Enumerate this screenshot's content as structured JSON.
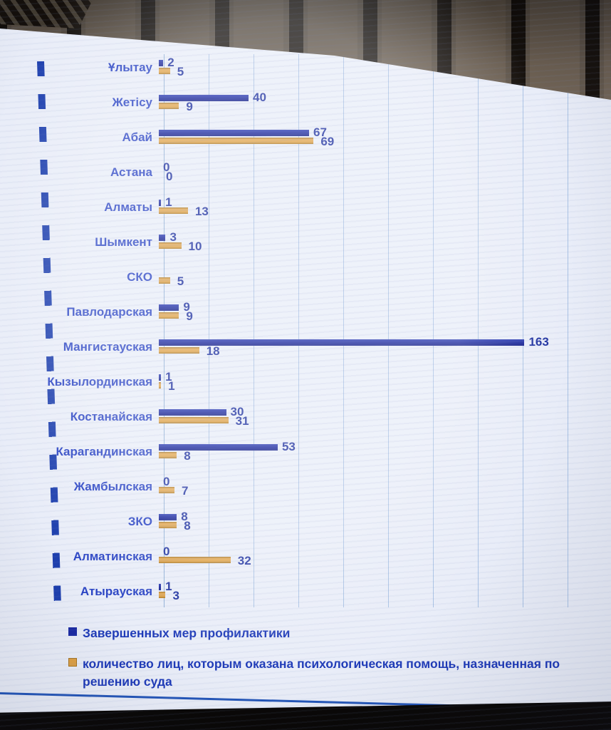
{
  "chart_data": {
    "type": "bar",
    "orientation": "horizontal",
    "title": "",
    "categories": [
      "Ұлытау",
      "Жетісу",
      "Абай",
      "Астана",
      "Алматы",
      "Шымкент",
      "СКО",
      "Павлодарская",
      "Мангистауская",
      "Кызылординская",
      "Костанайская",
      "Карагандинская",
      "Жамбылская",
      "ЗКО",
      "Алматинская",
      "Атырауская"
    ],
    "series": [
      {
        "name": "Завершенных мер профилактики",
        "color": "#1c2ba3",
        "values": [
          2,
          40,
          67,
          0,
          1,
          3,
          null,
          9,
          163,
          1,
          30,
          53,
          0,
          8,
          0,
          1
        ],
        "labels": [
          "2",
          "40",
          "67",
          "0",
          "1",
          "3",
          "",
          "9",
          "163",
          "1",
          "30",
          "53",
          "0",
          "8",
          "0",
          "1"
        ]
      },
      {
        "name": "количество лиц, которым оказана психологическая помощь, назначенная  по решению суда",
        "color": "#dda045",
        "values": [
          5,
          9,
          69,
          0,
          13,
          10,
          5,
          9,
          18,
          1,
          31,
          8,
          7,
          8,
          32,
          3
        ],
        "labels": [
          "5",
          "9",
          "69",
          "0",
          "13",
          "10",
          "5",
          "9",
          "18",
          "1",
          "31",
          "8",
          "7",
          "8",
          "32",
          "3"
        ]
      }
    ],
    "xlim": [
      0,
      180
    ],
    "grid": true,
    "gridline_interval": 20,
    "legend_position": "bottom",
    "xlabel": "",
    "ylabel": ""
  },
  "legend": {
    "items": [
      {
        "label": "Завершенных мер профилактики",
        "color": "#1c2ba3"
      },
      {
        "label": "количество лиц, которым оказана психологическая помощь, назначенная  по решению суда",
        "color": "#dda045"
      }
    ]
  },
  "colors": {
    "bar_blue": "#1c2ba3",
    "bar_orange": "#dda045",
    "screen_background": "#e9edf8",
    "gridline": "#a9c2e4",
    "accent_line": "#1d3fae",
    "category_text": "#2943c4",
    "value_text": "#1c2f9f"
  }
}
